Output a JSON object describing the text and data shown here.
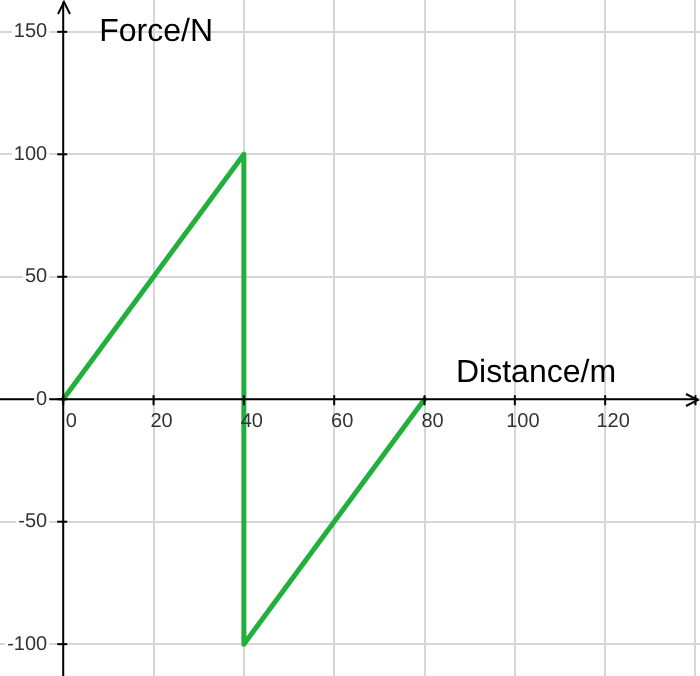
{
  "chart_data": {
    "type": "line",
    "xlabel": "Distance/m",
    "ylabel": "Force/N",
    "x": [
      0,
      40,
      40,
      80
    ],
    "series": [
      {
        "color": "#22b03c",
        "values": [
          0,
          100,
          -100,
          0
        ]
      }
    ],
    "xlim": [
      -14,
      141
    ],
    "ylim": [
      -113,
      163
    ],
    "xticks": [
      0,
      20,
      40,
      60,
      80,
      100,
      120,
      {
        "value": 140,
        "label": null
      }
    ],
    "yticks": [
      -100,
      -50,
      0,
      50,
      100,
      150
    ],
    "grid": true,
    "marker": "none",
    "line_style": "solid",
    "legend": false
  }
}
